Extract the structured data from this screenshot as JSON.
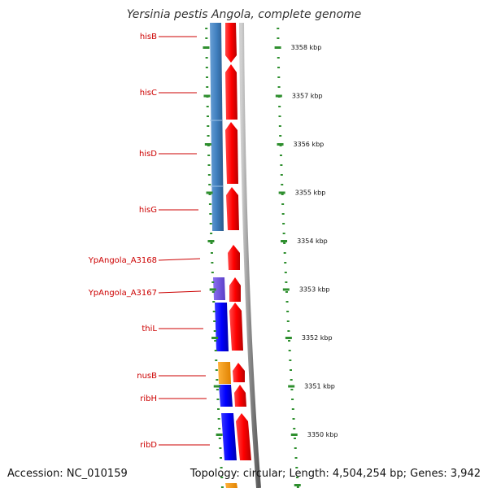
{
  "title": "Yersinia pestis Angola, complete genome",
  "accession_text": "Accession: NC_010159",
  "summary_text": "Topology: circular; Length: 4,504,254 bp; Genes: 3,942",
  "colors": {
    "forward_strand_gene": "#ff0000",
    "reverse_strand_gene": "#0000ff",
    "reverse_operon_steel": "#3f7fbf",
    "reverse_operon_violet": "#6e4fd8",
    "reverse_operon_orange": "#ff9900",
    "label_red": "#cc0000",
    "tick_green": "#2f8f2f",
    "backbone_gray": "#808080"
  },
  "scale_ticks": [
    {
      "label": "3358 kbp"
    },
    {
      "label": "3357 kbp"
    },
    {
      "label": "3356 kbp"
    },
    {
      "label": "3355 kbp"
    },
    {
      "label": "3354 kbp"
    },
    {
      "label": "3353 kbp"
    },
    {
      "label": "3352 kbp"
    },
    {
      "label": "3351 kbp"
    },
    {
      "label": "3350 kbp"
    }
  ],
  "gene_labels": [
    {
      "name": "hisB"
    },
    {
      "name": "hisC"
    },
    {
      "name": "hisD"
    },
    {
      "name": "hisG"
    },
    {
      "name": "YpAngola_A3168"
    },
    {
      "name": "YpAngola_A3167"
    },
    {
      "name": "thiL"
    },
    {
      "name": "nusB"
    },
    {
      "name": "ribH"
    },
    {
      "name": "ribD"
    }
  ]
}
